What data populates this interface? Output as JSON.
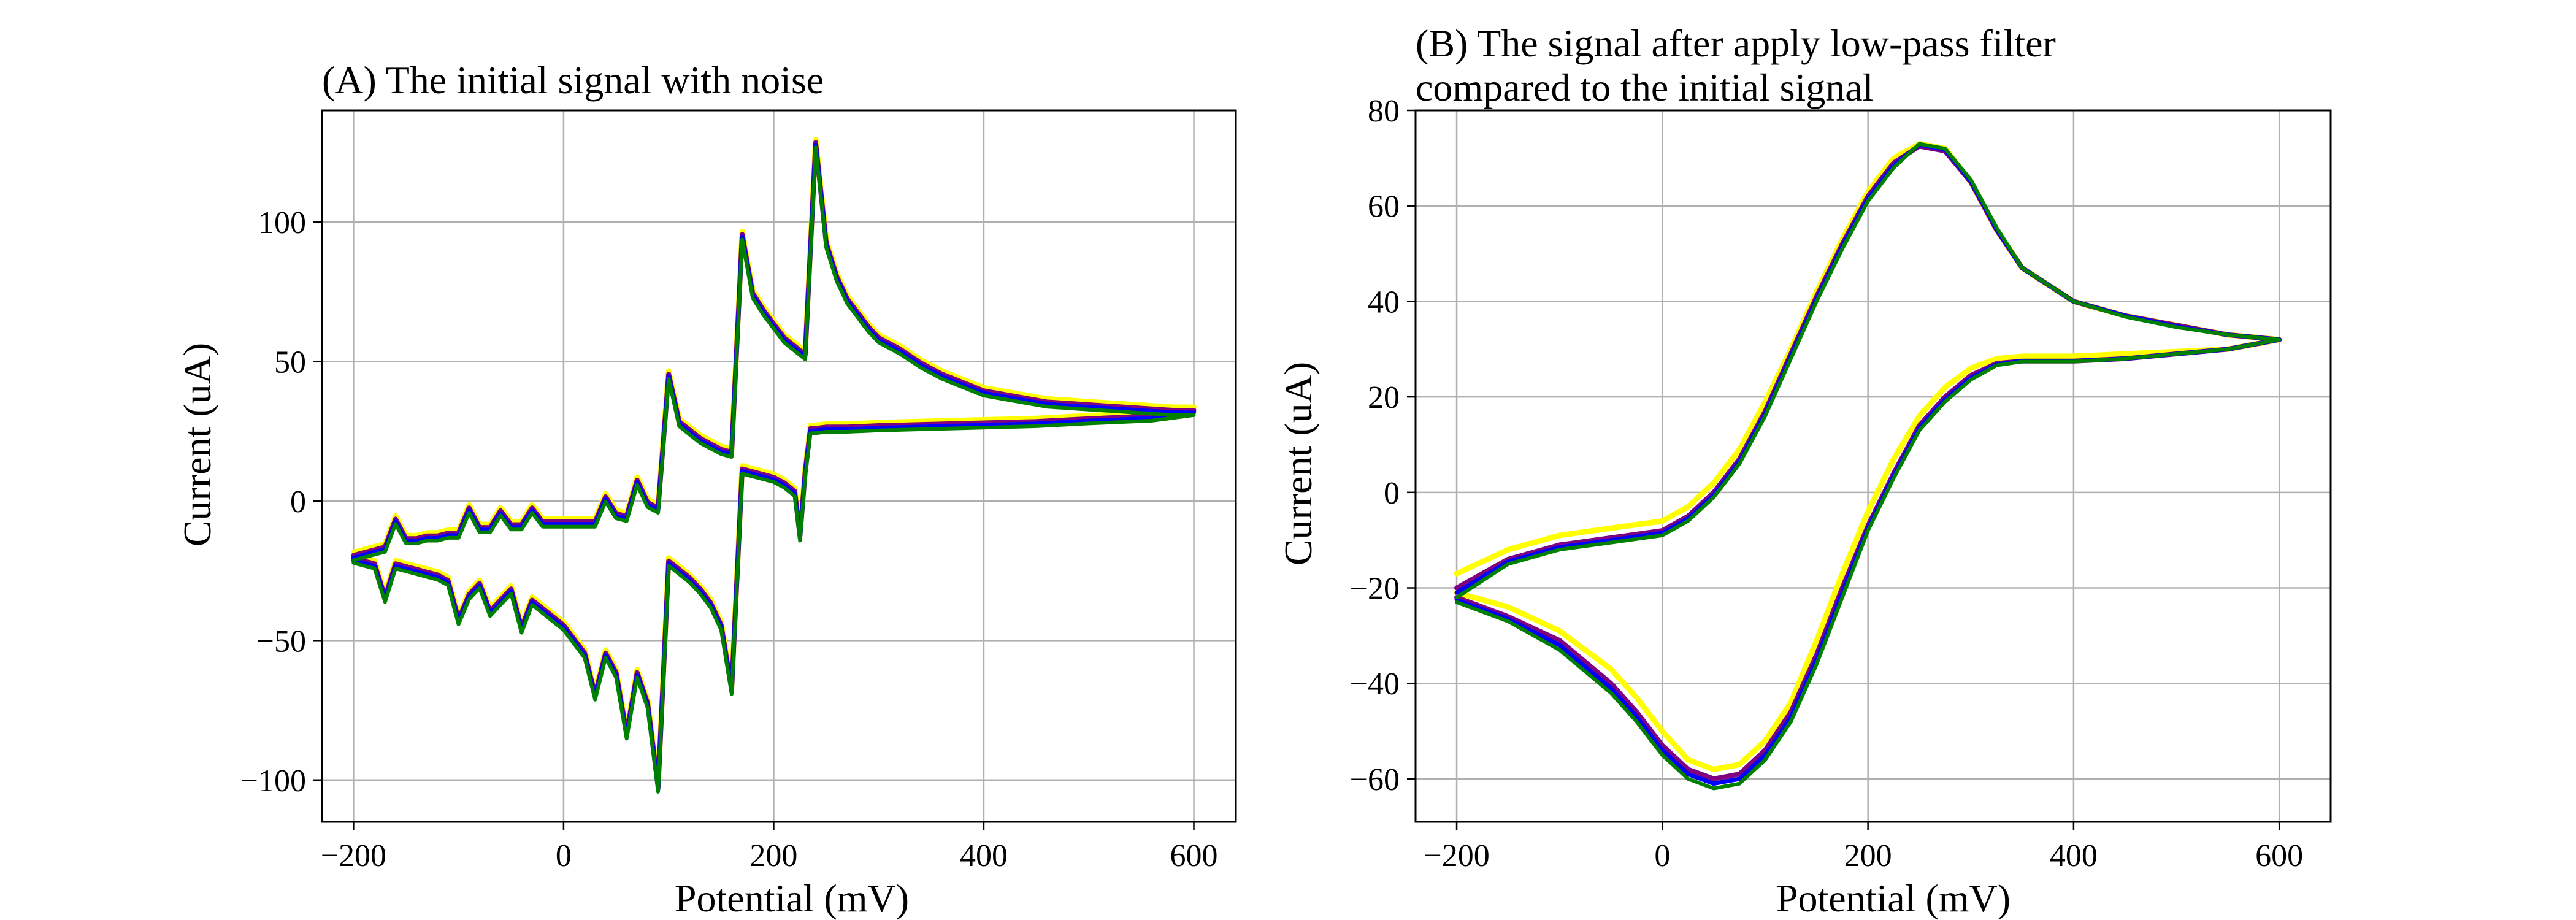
{
  "chart_data": [
    {
      "type": "line",
      "title": "(A) The initial signal with noise",
      "title_lines": [
        "(A) The initial signal with noise"
      ],
      "xlabel": "Potential (mV)",
      "ylabel": "Current (uA)",
      "xlim": [
        -230,
        640
      ],
      "ylim": [
        -115,
        140
      ],
      "xticks": [
        -200,
        0,
        200,
        400,
        600
      ],
      "xtick_labels": [
        "−200",
        "0",
        "200",
        "400",
        "600"
      ],
      "yticks": [
        -100,
        -50,
        0,
        50,
        100
      ],
      "ytick_labels": [
        "−100",
        "−50",
        "0",
        "50",
        "100"
      ],
      "grid": true,
      "colors": [
        "#ffff00",
        "#800080",
        "#0000ff",
        "#008000"
      ],
      "line_widths": [
        9,
        8,
        7,
        6
      ],
      "series": [
        {
          "offset": 1.6,
          "x": [
            -200,
            -180,
            -170,
            -160,
            -150,
            -140,
            -130,
            -120,
            -110,
            -100,
            -90,
            -80,
            -70,
            -60,
            -50,
            -40,
            -30,
            -20,
            -10,
            0,
            10,
            20,
            30,
            40,
            50,
            60,
            70,
            80,
            90,
            100,
            110,
            120,
            130,
            140,
            150,
            160,
            170,
            180,
            190,
            200,
            210,
            220,
            230,
            240,
            250,
            260,
            270,
            280,
            290,
            300,
            320,
            340,
            360,
            380,
            400,
            430,
            460,
            500,
            540,
            580,
            600,
            560,
            500,
            450,
            400,
            350,
            300,
            270,
            250,
            240,
            235,
            230,
            225,
            220,
            210,
            200,
            190,
            180,
            170,
            160,
            150,
            140,
            130,
            120,
            110,
            100,
            90,
            80,
            70,
            60,
            50,
            40,
            30,
            20,
            10,
            0,
            -10,
            -20,
            -30,
            -40,
            -50,
            -60,
            -70,
            -80,
            -90,
            -100,
            -110,
            -120,
            -130,
            -140,
            -150,
            -160,
            -170,
            -180,
            -190,
            -200
          ],
          "y": [
            -20,
            -18,
            -17,
            -7,
            -14,
            -14,
            -13,
            -13,
            -12,
            -12,
            -3,
            -10,
            -10,
            -4,
            -9,
            -9,
            -3,
            -8,
            -8,
            -8,
            -8,
            -8,
            -8,
            1,
            -5,
            -6,
            7,
            -1,
            -3,
            45,
            28,
            25,
            22,
            20,
            18,
            17,
            95,
            74,
            68,
            63,
            58,
            55,
            52,
            128,
            92,
            80,
            72,
            67,
            62,
            58,
            54,
            49,
            45,
            42,
            39,
            37,
            35,
            34,
            33,
            32,
            32,
            30,
            29,
            28,
            27.5,
            27,
            26.5,
            26,
            26,
            25.5,
            25.5,
            10,
            -13,
            3,
            6,
            8,
            9,
            10,
            11,
            -68,
            -45,
            -37,
            -32,
            -28,
            -25,
            -22,
            -103,
            -73,
            -62,
            -84,
            -62,
            -55,
            -70,
            -55,
            -50,
            -45,
            -42,
            -39,
            -36,
            -46,
            -32,
            -36,
            -40,
            -30,
            -34,
            -43,
            -29,
            -27,
            -26,
            -25,
            -24,
            -23,
            -35,
            -23,
            -22,
            -21
          ],
          "name": ""
        },
        {
          "offset": 0.5,
          "ref": 0
        },
        {
          "offset": -0.3,
          "ref": 0
        },
        {
          "offset": -1.2,
          "ref": 0
        }
      ]
    },
    {
      "type": "line",
      "title": "(B) The signal after apply low-pass filter compared to the initial signal",
      "title_lines": [
        "(B) The signal after apply low-pass filter",
        "compared to the initial signal"
      ],
      "xlabel": "Potential (mV)",
      "ylabel": "Current (uA)",
      "xlim": [
        -240,
        650
      ],
      "ylim": [
        -69,
        80
      ],
      "xticks": [
        -200,
        0,
        200,
        400,
        600
      ],
      "xtick_labels": [
        "−200",
        "0",
        "200",
        "400",
        "600"
      ],
      "yticks": [
        -60,
        -40,
        -20,
        0,
        20,
        40,
        60,
        80
      ],
      "ytick_labels": [
        "−60",
        "−40",
        "−20",
        "0",
        "20",
        "40",
        "60",
        "80"
      ],
      "grid": true,
      "colors": [
        "#ffff00",
        "#800080",
        "#0000ff",
        "#008000"
      ],
      "line_widths": [
        9,
        8,
        7,
        6
      ],
      "series": [
        {
          "x": [
            -200,
            -150,
            -100,
            -50,
            0,
            25,
            50,
            75,
            100,
            125,
            150,
            175,
            200,
            225,
            250,
            275,
            300,
            325,
            350,
            400,
            450,
            500,
            550,
            600,
            550,
            500,
            450,
            400,
            350,
            325,
            300,
            275,
            250,
            225,
            200,
            175,
            150,
            125,
            100,
            75,
            50,
            25,
            0,
            -25,
            -50,
            -100,
            -150,
            -200
          ],
          "y": [
            -17,
            -12,
            -9,
            -7.5,
            -6,
            -3,
            2,
            9,
            19,
            30,
            42,
            53,
            63,
            70,
            73,
            72,
            65,
            55,
            47,
            40,
            37,
            35,
            33,
            32,
            30,
            29.5,
            29,
            28.5,
            28.5,
            28,
            26,
            22,
            16,
            7,
            -4,
            -17,
            -31,
            -44,
            -52,
            -57,
            -58,
            -56,
            -50,
            -43,
            -37,
            -29,
            -24,
            -21
          ]
        },
        {
          "x": [
            -200,
            -150,
            -100,
            -50,
            0,
            25,
            50,
            75,
            100,
            125,
            150,
            175,
            200,
            225,
            250,
            275,
            300,
            325,
            350,
            400,
            450,
            500,
            550,
            600,
            550,
            500,
            450,
            400,
            350,
            325,
            300,
            275,
            250,
            225,
            200,
            175,
            150,
            125,
            100,
            75,
            50,
            25,
            0,
            -25,
            -50,
            -100,
            -150,
            -200
          ],
          "y": [
            -20,
            -14,
            -11,
            -9.5,
            -8,
            -5,
            0,
            7,
            17,
            29,
            41,
            52,
            62,
            69,
            72.5,
            71.5,
            65,
            55,
            47,
            40,
            37,
            35,
            33,
            32,
            30,
            29,
            28,
            27.5,
            27.5,
            27,
            24.5,
            20,
            14,
            4,
            -7,
            -20,
            -34,
            -46,
            -54,
            -59,
            -60,
            -58,
            -53,
            -46,
            -40,
            -31,
            -26,
            -22
          ]
        },
        {
          "x": [
            -200,
            -150,
            -100,
            -50,
            0,
            25,
            50,
            75,
            100,
            125,
            150,
            175,
            200,
            225,
            250,
            275,
            300,
            325,
            350,
            400,
            450,
            500,
            550,
            600,
            550,
            500,
            450,
            400,
            350,
            325,
            300,
            275,
            250,
            225,
            200,
            175,
            150,
            125,
            100,
            75,
            50,
            25,
            0,
            -25,
            -50,
            -100,
            -150,
            -200
          ],
          "y": [
            -21,
            -14.5,
            -11.5,
            -10,
            -8.5,
            -5.5,
            -0.5,
            6.5,
            16.5,
            28.5,
            40.5,
            51.5,
            61.5,
            68.5,
            72.8,
            71.8,
            65.2,
            55.2,
            47,
            40,
            37,
            34.8,
            33,
            32,
            30,
            29,
            28,
            27.5,
            27.5,
            26.8,
            24,
            19.5,
            13.5,
            3.5,
            -7.5,
            -21,
            -35,
            -47,
            -55,
            -60,
            -61,
            -59,
            -54,
            -47,
            -41,
            -32,
            -26.5,
            -22.5
          ]
        },
        {
          "x": [
            -200,
            -150,
            -100,
            -50,
            0,
            25,
            50,
            75,
            100,
            125,
            150,
            175,
            200,
            225,
            250,
            275,
            300,
            325,
            350,
            400,
            450,
            500,
            550,
            600,
            550,
            500,
            450,
            400,
            350,
            325,
            300,
            275,
            250,
            225,
            200,
            175,
            150,
            125,
            100,
            75,
            50,
            25,
            0,
            -25,
            -50,
            -100,
            -150,
            -200
          ],
          "y": [
            -22,
            -15,
            -12,
            -10.5,
            -9,
            -6,
            -1,
            6,
            16,
            28,
            40,
            51,
            61,
            68,
            73,
            72,
            65.5,
            55.5,
            47,
            40,
            36.8,
            34.6,
            33,
            32,
            30,
            29,
            28,
            27.4,
            27.4,
            26.6,
            23.6,
            19,
            13,
            3,
            -8,
            -22,
            -36,
            -48,
            -56,
            -61,
            -62,
            -60,
            -55,
            -48,
            -42,
            -33,
            -27,
            -23
          ]
        }
      ]
    }
  ]
}
